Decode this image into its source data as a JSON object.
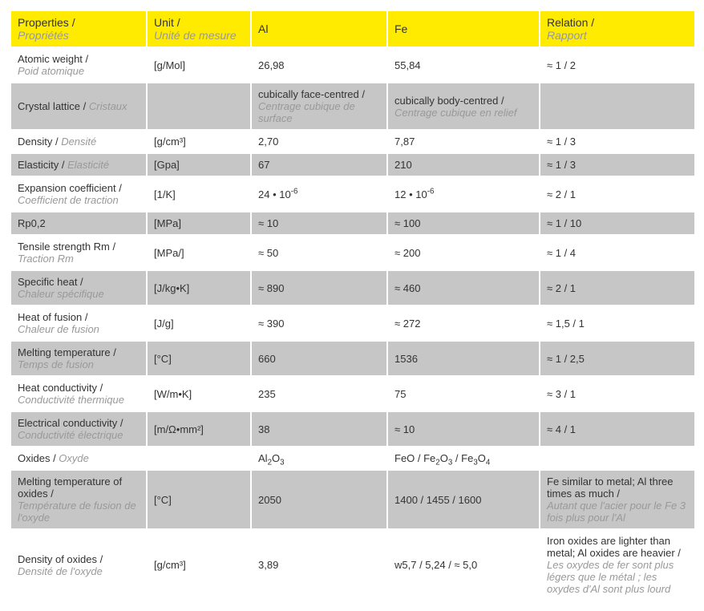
{
  "colors": {
    "header_bg": "#ffeb00",
    "row_even_bg": "#ffffff",
    "row_odd_bg": "#c6c6c6",
    "border": "#ffffff",
    "text_main": "#333333",
    "text_secondary": "#999999"
  },
  "col_widths": [
    "170px",
    "130px",
    "170px",
    "190px",
    "194px"
  ],
  "headers": [
    {
      "en": "Properties /",
      "fr": "Propriétés"
    },
    {
      "en": "Unit /",
      "fr": "Unité de mesure"
    },
    {
      "en": "Al",
      "fr": ""
    },
    {
      "en": "Fe",
      "fr": ""
    },
    {
      "en": "Relation /",
      "fr": "Rapport"
    }
  ],
  "rows": [
    {
      "prop_en": "Atomic weight /",
      "prop_fr": "Poid atomique",
      "unit": "[g/Mol]",
      "al_en": "26,98",
      "al_fr": "",
      "fe_en": "55,84",
      "fe_fr": "",
      "rel_en": "≈ 1 / 2",
      "rel_fr": ""
    },
    {
      "prop_en": "Crystal lattice / ",
      "prop_fr": "Cristaux",
      "prop_inline": true,
      "unit": "",
      "al_en": "cubically face-centred /",
      "al_fr": "Centrage cubique de surface",
      "fe_en": "cubically body-centred /",
      "fe_fr": "Centrage cubique en relief",
      "rel_en": "",
      "rel_fr": ""
    },
    {
      "prop_en": "Density / ",
      "prop_fr": "Densité",
      "prop_inline": true,
      "unit": "[g/cm³]",
      "al_en": "2,70",
      "al_fr": "",
      "fe_en": "7,87",
      "fe_fr": "",
      "rel_en": "≈ 1 / 3",
      "rel_fr": ""
    },
    {
      "prop_en": "Elasticity / ",
      "prop_fr": "Elasticité",
      "prop_inline": true,
      "unit": "[Gpa]",
      "al_en": "67",
      "al_fr": "",
      "fe_en": "210",
      "fe_fr": "",
      "rel_en": "≈ 1 / 3",
      "rel_fr": ""
    },
    {
      "prop_en": "Expansion coefficient /",
      "prop_fr": "Coefficient de traction",
      "unit": "[1/K]",
      "al_html": "24 • 10<sup>-6</sup>",
      "fe_html": "12 • 10<sup>-6</sup>",
      "rel_en": "≈ 2 / 1",
      "rel_fr": ""
    },
    {
      "prop_en": "Rp0,2",
      "prop_fr": "",
      "unit": "[MPa]",
      "al_en": "≈ 10",
      "al_fr": "",
      "fe_en": "≈ 100",
      "fe_fr": "",
      "rel_en": "≈ 1 / 10",
      "rel_fr": ""
    },
    {
      "prop_en": "Tensile strength Rm /",
      "prop_fr": "Traction Rm",
      "unit": "[MPa/]",
      "al_en": "≈ 50",
      "al_fr": "",
      "fe_en": "≈ 200",
      "fe_fr": "",
      "rel_en": "≈ 1 / 4",
      "rel_fr": ""
    },
    {
      "prop_en": "Specific heat /",
      "prop_fr": "Chaleur spécifique",
      "unit": "[J/kg•K]",
      "al_en": "≈ 890",
      "al_fr": "",
      "fe_en": "≈ 460",
      "fe_fr": "",
      "rel_en": "≈ 2 / 1",
      "rel_fr": ""
    },
    {
      "prop_en": "Heat of fusion /",
      "prop_fr": "Chaleur de fusion",
      "unit": "[J/g]",
      "al_en": "≈ 390",
      "al_fr": "",
      "fe_en": "≈ 272",
      "fe_fr": "",
      "rel_en": "≈ 1,5 / 1",
      "rel_fr": ""
    },
    {
      "prop_en": "Melting temperature /",
      "prop_fr": "Temps de fusion",
      "unit": "[°C]",
      "al_en": "660",
      "al_fr": "",
      "fe_en": "1536",
      "fe_fr": "",
      "rel_en": "≈ 1 / 2,5",
      "rel_fr": ""
    },
    {
      "prop_en": "Heat conductivity /",
      "prop_fr": "Conductivité thermique",
      "unit": "[W/m•K]",
      "al_en": "235",
      "al_fr": "",
      "fe_en": "75",
      "fe_fr": "",
      "rel_en": "≈ 3 / 1",
      "rel_fr": ""
    },
    {
      "prop_en": "Electrical conductivity /",
      "prop_fr": "Conductivité électrique",
      "unit": "[m/Ω•mm²]",
      "al_en": "38",
      "al_fr": "",
      "fe_en": "≈ 10",
      "fe_fr": "",
      "rel_en": "≈ 4 / 1",
      "rel_fr": ""
    },
    {
      "prop_en": "Oxides / ",
      "prop_fr": "Oxyde",
      "prop_inline": true,
      "unit": "",
      "al_html": "Al<sub>2</sub>O<sub>3</sub>",
      "fe_html": "FeO / Fe<sub>2</sub>O<sub>3</sub> / Fe<sub>3</sub>O<sub>4</sub>",
      "rel_en": "",
      "rel_fr": ""
    },
    {
      "prop_en": "Melting temperature of oxides /",
      "prop_fr": "Température de fusion de l'oxyde",
      "unit": "[°C]",
      "al_en": "2050",
      "al_fr": "",
      "fe_en": "1400 / 1455 / 1600",
      "fe_fr": "",
      "rel_en": "Fe similar to metal; Al three times as much /",
      "rel_fr": "Autant que l'acier pour le Fe 3 fois plus pour l'Al"
    },
    {
      "prop_en": "Density of oxides /",
      "prop_fr": "Densité de l'oxyde",
      "unit": "[g/cm³]",
      "al_en": "3,89",
      "al_fr": "",
      "fe_en": "w5,7 / 5,24 / ≈ 5,0",
      "fe_fr": "",
      "rel_en": "Iron oxides are lighter than metal; Al oxides are heavier /",
      "rel_fr": "Les oxydes de fer sont plus légers que le métal ; les oxydes d'Al sont plus lourd"
    }
  ]
}
